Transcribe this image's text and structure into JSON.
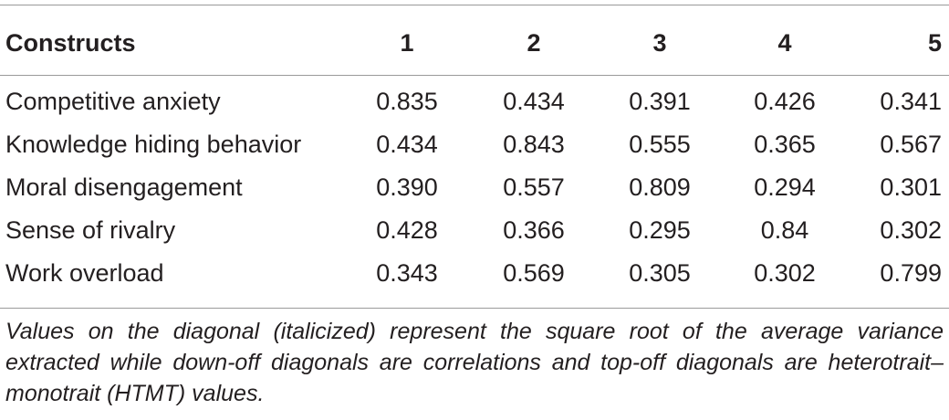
{
  "table": {
    "headers": [
      "Constructs",
      "1",
      "2",
      "3",
      "4",
      "5"
    ],
    "rows": [
      {
        "label": "Competitive anxiety",
        "values": [
          "0.835",
          "0.434",
          "0.391",
          "0.426",
          "0.341"
        ]
      },
      {
        "label": "Knowledge hiding behavior",
        "values": [
          "0.434",
          "0.843",
          "0.555",
          "0.365",
          "0.567"
        ]
      },
      {
        "label": "Moral disengagement",
        "values": [
          "0.390",
          "0.557",
          "0.809",
          "0.294",
          "0.301"
        ]
      },
      {
        "label": "Sense of rivalry",
        "values": [
          "0.428",
          "0.366",
          "0.295",
          "0.84",
          "0.302"
        ]
      },
      {
        "label": "Work overload",
        "values": [
          "0.343",
          "0.569",
          "0.305",
          "0.302",
          "0.799"
        ]
      }
    ],
    "note": "Values on the diagonal (italicized) represent the square root of the average variance extracted while down-off diagonals are correlations and top-off diagonals are heterotrait–monotrait (HTMT) values."
  }
}
